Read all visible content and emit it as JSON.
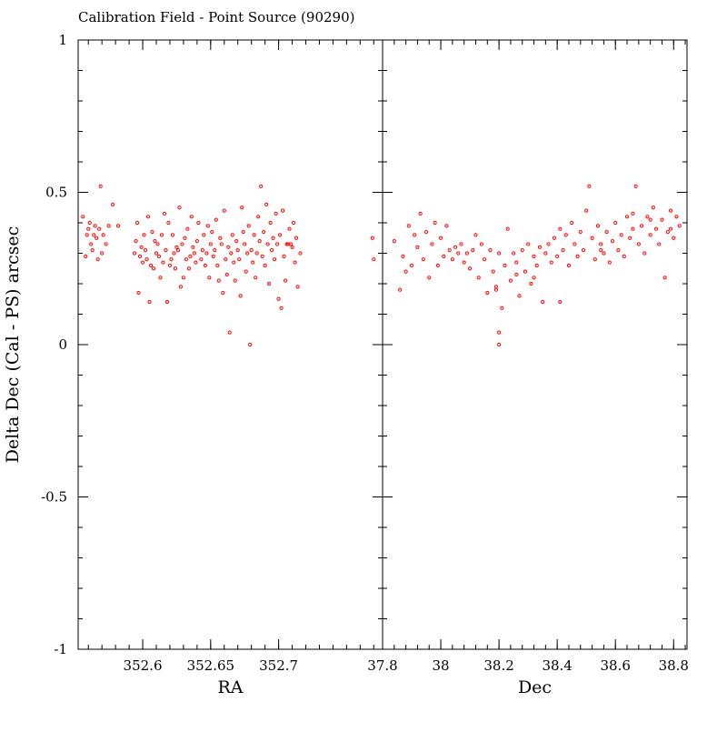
{
  "chart_data": {
    "type": "scatter",
    "title": "Calibration Field - Point Source (90290)",
    "ylabel": "Delta Dec (Cal - PS) arcsec",
    "ylim": [
      -1,
      1
    ],
    "yticks": [
      {
        "value": 1,
        "label": "1"
      },
      {
        "value": 0.5,
        "label": "0.5"
      },
      {
        "value": 0,
        "label": "0"
      },
      {
        "value": -0.5,
        "label": "-0.5"
      },
      {
        "value": -1,
        "label": "-1"
      }
    ],
    "marker_color": "#ff0000",
    "panels": [
      {
        "xlabel": "RA",
        "xlim": [
          352.5525,
          352.7765
        ],
        "xticks": [
          {
            "value": 352.6,
            "label": "352.6"
          },
          {
            "value": 352.65,
            "label": "352.65"
          },
          {
            "value": 352.7,
            "label": "352.7"
          }
        ],
        "points": [
          [
            352.556,
            0.42
          ],
          [
            352.558,
            0.29
          ],
          [
            352.559,
            0.36
          ],
          [
            352.56,
            0.38
          ],
          [
            352.561,
            0.4
          ],
          [
            352.562,
            0.33
          ],
          [
            352.563,
            0.31
          ],
          [
            352.564,
            0.36
          ],
          [
            352.565,
            0.39
          ],
          [
            352.566,
            0.35
          ],
          [
            352.567,
            0.28
          ],
          [
            352.568,
            0.38
          ],
          [
            352.569,
            0.52
          ],
          [
            352.57,
            0.3
          ],
          [
            352.571,
            0.36
          ],
          [
            352.573,
            0.33
          ],
          [
            352.575,
            0.39
          ],
          [
            352.578,
            0.46
          ],
          [
            352.582,
            0.39
          ],
          [
            352.594,
            0.3
          ],
          [
            352.595,
            0.34
          ],
          [
            352.596,
            0.4
          ],
          [
            352.597,
            0.17
          ],
          [
            352.598,
            0.29
          ],
          [
            352.599,
            0.32
          ],
          [
            352.6,
            0.27
          ],
          [
            352.601,
            0.36
          ],
          [
            352.602,
            0.31
          ],
          [
            352.603,
            0.28
          ],
          [
            352.604,
            0.42
          ],
          [
            352.605,
            0.14
          ],
          [
            352.606,
            0.26
          ],
          [
            352.607,
            0.37
          ],
          [
            352.608,
            0.25
          ],
          [
            352.609,
            0.34
          ],
          [
            352.61,
            0.3
          ],
          [
            352.611,
            0.33
          ],
          [
            352.612,
            0.29
          ],
          [
            352.613,
            0.22
          ],
          [
            352.614,
            0.36
          ],
          [
            352.615,
            0.27
          ],
          [
            352.616,
            0.43
          ],
          [
            352.617,
            0.31
          ],
          [
            352.618,
            0.14
          ],
          [
            352.619,
            0.4
          ],
          [
            352.62,
            0.26
          ],
          [
            352.621,
            0.28
          ],
          [
            352.622,
            0.36
          ],
          [
            352.623,
            0.3
          ],
          [
            352.624,
            0.25
          ],
          [
            352.625,
            0.32
          ],
          [
            352.626,
            0.31
          ],
          [
            352.627,
            0.45
          ],
          [
            352.628,
            0.19
          ],
          [
            352.629,
            0.33
          ],
          [
            352.63,
            0.22
          ],
          [
            352.631,
            0.35
          ],
          [
            352.632,
            0.28
          ],
          [
            352.633,
            0.38
          ],
          [
            352.634,
            0.25
          ],
          [
            352.635,
            0.29
          ],
          [
            352.636,
            0.42
          ],
          [
            352.637,
            0.32
          ],
          [
            352.638,
            0.3
          ],
          [
            352.639,
            0.27
          ],
          [
            352.64,
            0.34
          ],
          [
            352.641,
            0.4
          ],
          [
            352.643,
            0.28
          ],
          [
            352.644,
            0.31
          ],
          [
            352.645,
            0.36
          ],
          [
            352.646,
            0.26
          ],
          [
            352.647,
            0.3
          ],
          [
            352.648,
            0.39
          ],
          [
            352.649,
            0.22
          ],
          [
            352.65,
            0.33
          ],
          [
            352.651,
            0.37
          ],
          [
            352.652,
            0.29
          ],
          [
            352.653,
            0.31
          ],
          [
            352.654,
            0.41
          ],
          [
            352.655,
            0.26
          ],
          [
            352.656,
            0.21
          ],
          [
            352.657,
            0.35
          ],
          [
            352.658,
            0.33
          ],
          [
            352.659,
            0.17
          ],
          [
            352.66,
            0.44
          ],
          [
            352.661,
            0.28
          ],
          [
            352.662,
            0.23
          ],
          [
            352.663,
            0.32
          ],
          [
            352.664,
            0.04
          ],
          [
            352.665,
            0.3
          ],
          [
            352.666,
            0.36
          ],
          [
            352.667,
            0.27
          ],
          [
            352.668,
            0.21
          ],
          [
            352.669,
            0.34
          ],
          [
            352.67,
            0.31
          ],
          [
            352.671,
            0.28
          ],
          [
            352.672,
            0.16
          ],
          [
            352.673,
            0.45
          ],
          [
            352.674,
            0.37
          ],
          [
            352.675,
            0.33
          ],
          [
            352.676,
            0.24
          ],
          [
            352.677,
            0.3
          ],
          [
            352.678,
            0.39
          ],
          [
            352.679,
            0.0
          ],
          [
            352.68,
            0.31
          ],
          [
            352.681,
            0.27
          ],
          [
            352.682,
            0.36
          ],
          [
            352.683,
            0.22
          ],
          [
            352.684,
            0.3
          ],
          [
            352.685,
            0.42
          ],
          [
            352.686,
            0.34
          ],
          [
            352.687,
            0.52
          ],
          [
            352.688,
            0.29
          ],
          [
            352.689,
            0.37
          ],
          [
            352.69,
            0.26
          ],
          [
            352.691,
            0.46
          ],
          [
            352.692,
            0.33
          ],
          [
            352.693,
            0.2
          ],
          [
            352.694,
            0.4
          ],
          [
            352.695,
            0.31
          ],
          [
            352.696,
            0.35
          ],
          [
            352.697,
            0.28
          ],
          [
            352.698,
            0.43
          ],
          [
            352.699,
            0.33
          ],
          [
            352.7,
            0.15
          ],
          [
            352.701,
            0.36
          ],
          [
            352.702,
            0.12
          ],
          [
            352.703,
            0.44
          ],
          [
            352.704,
            0.29
          ],
          [
            352.705,
            0.21
          ],
          [
            352.706,
            0.33
          ],
          [
            352.707,
            0.33
          ],
          [
            352.708,
            0.38
          ],
          [
            352.709,
            0.33
          ],
          [
            352.71,
            0.32
          ],
          [
            352.711,
            0.4
          ],
          [
            352.712,
            0.27
          ],
          [
            352.713,
            0.35
          ],
          [
            352.714,
            0.19
          ],
          [
            352.716,
            0.3
          ],
          [
            352.769,
            0.35
          ],
          [
            352.77,
            0.28
          ]
        ]
      },
      {
        "xlabel": "Dec",
        "xlim": [
          37.8,
          38.846
        ],
        "xticks": [
          {
            "value": 37.8,
            "label": "37.8"
          },
          {
            "value": 38,
            "label": "38"
          },
          {
            "value": 38.2,
            "label": "38.2"
          },
          {
            "value": 38.4,
            "label": "38.4"
          },
          {
            "value": 38.6,
            "label": "38.6"
          },
          {
            "value": 38.8,
            "label": "38.8"
          }
        ],
        "points": [
          [
            37.84,
            0.34
          ],
          [
            37.86,
            0.18
          ],
          [
            37.87,
            0.29
          ],
          [
            37.88,
            0.24
          ],
          [
            37.89,
            0.39
          ],
          [
            37.9,
            0.26
          ],
          [
            37.91,
            0.36
          ],
          [
            37.92,
            0.32
          ],
          [
            37.93,
            0.43
          ],
          [
            37.94,
            0.28
          ],
          [
            37.95,
            0.37
          ],
          [
            37.96,
            0.22
          ],
          [
            37.97,
            0.33
          ],
          [
            37.98,
            0.4
          ],
          [
            37.99,
            0.26
          ],
          [
            38.0,
            0.35
          ],
          [
            38.01,
            0.29
          ],
          [
            38.02,
            0.39
          ],
          [
            38.03,
            0.31
          ],
          [
            38.04,
            0.28
          ],
          [
            38.05,
            0.32
          ],
          [
            38.06,
            0.3
          ],
          [
            38.07,
            0.33
          ],
          [
            38.08,
            0.27
          ],
          [
            38.09,
            0.3
          ],
          [
            38.1,
            0.25
          ],
          [
            38.11,
            0.31
          ],
          [
            38.12,
            0.36
          ],
          [
            38.13,
            0.22
          ],
          [
            38.14,
            0.33
          ],
          [
            38.15,
            0.28
          ],
          [
            38.16,
            0.17
          ],
          [
            38.17,
            0.31
          ],
          [
            38.18,
            0.24
          ],
          [
            38.19,
            0.19
          ],
          [
            38.2,
            0.3
          ],
          [
            38.21,
            0.12
          ],
          [
            38.22,
            0.26
          ],
          [
            38.23,
            0.38
          ],
          [
            38.24,
            0.21
          ],
          [
            38.25,
            0.3
          ],
          [
            38.26,
            0.27
          ],
          [
            38.27,
            0.16
          ],
          [
            38.28,
            0.31
          ],
          [
            38.29,
            0.24
          ],
          [
            38.3,
            0.33
          ],
          [
            38.31,
            0.2
          ],
          [
            38.32,
            0.29
          ],
          [
            38.33,
            0.26
          ],
          [
            38.34,
            0.32
          ],
          [
            38.35,
            0.14
          ],
          [
            38.36,
            0.3
          ],
          [
            38.37,
            0.33
          ],
          [
            38.38,
            0.27
          ],
          [
            38.39,
            0.35
          ],
          [
            38.4,
            0.29
          ],
          [
            38.41,
            0.38
          ],
          [
            38.42,
            0.31
          ],
          [
            38.43,
            0.36
          ],
          [
            38.44,
            0.26
          ],
          [
            38.45,
            0.4
          ],
          [
            38.46,
            0.33
          ],
          [
            38.47,
            0.29
          ],
          [
            38.48,
            0.37
          ],
          [
            38.49,
            0.31
          ],
          [
            38.5,
            0.44
          ],
          [
            38.51,
            0.52
          ],
          [
            38.52,
            0.35
          ],
          [
            38.53,
            0.28
          ],
          [
            38.54,
            0.39
          ],
          [
            38.55,
            0.33
          ],
          [
            38.56,
            0.3
          ],
          [
            38.57,
            0.37
          ],
          [
            38.58,
            0.27
          ],
          [
            38.59,
            0.34
          ],
          [
            38.6,
            0.4
          ],
          [
            38.61,
            0.31
          ],
          [
            38.62,
            0.36
          ],
          [
            38.63,
            0.29
          ],
          [
            38.64,
            0.42
          ],
          [
            38.65,
            0.35
          ],
          [
            38.66,
            0.38
          ],
          [
            38.67,
            0.52
          ],
          [
            38.68,
            0.33
          ],
          [
            38.69,
            0.39
          ],
          [
            38.7,
            0.3
          ],
          [
            38.71,
            0.42
          ],
          [
            38.72,
            0.36
          ],
          [
            38.73,
            0.45
          ],
          [
            38.74,
            0.38
          ],
          [
            38.75,
            0.33
          ],
          [
            38.76,
            0.41
          ],
          [
            38.77,
            0.22
          ],
          [
            38.78,
            0.37
          ],
          [
            38.79,
            0.44
          ],
          [
            38.8,
            0.35
          ],
          [
            38.81,
            0.42
          ],
          [
            38.82,
            0.39
          ],
          [
            38.2,
            0.04
          ],
          [
            38.2,
            0.0
          ],
          [
            38.19,
            0.18
          ],
          [
            38.26,
            0.23
          ],
          [
            38.32,
            0.22
          ],
          [
            38.41,
            0.14
          ],
          [
            38.55,
            0.31
          ],
          [
            38.66,
            0.43
          ],
          [
            38.72,
            0.41
          ],
          [
            38.79,
            0.38
          ]
        ]
      }
    ]
  }
}
